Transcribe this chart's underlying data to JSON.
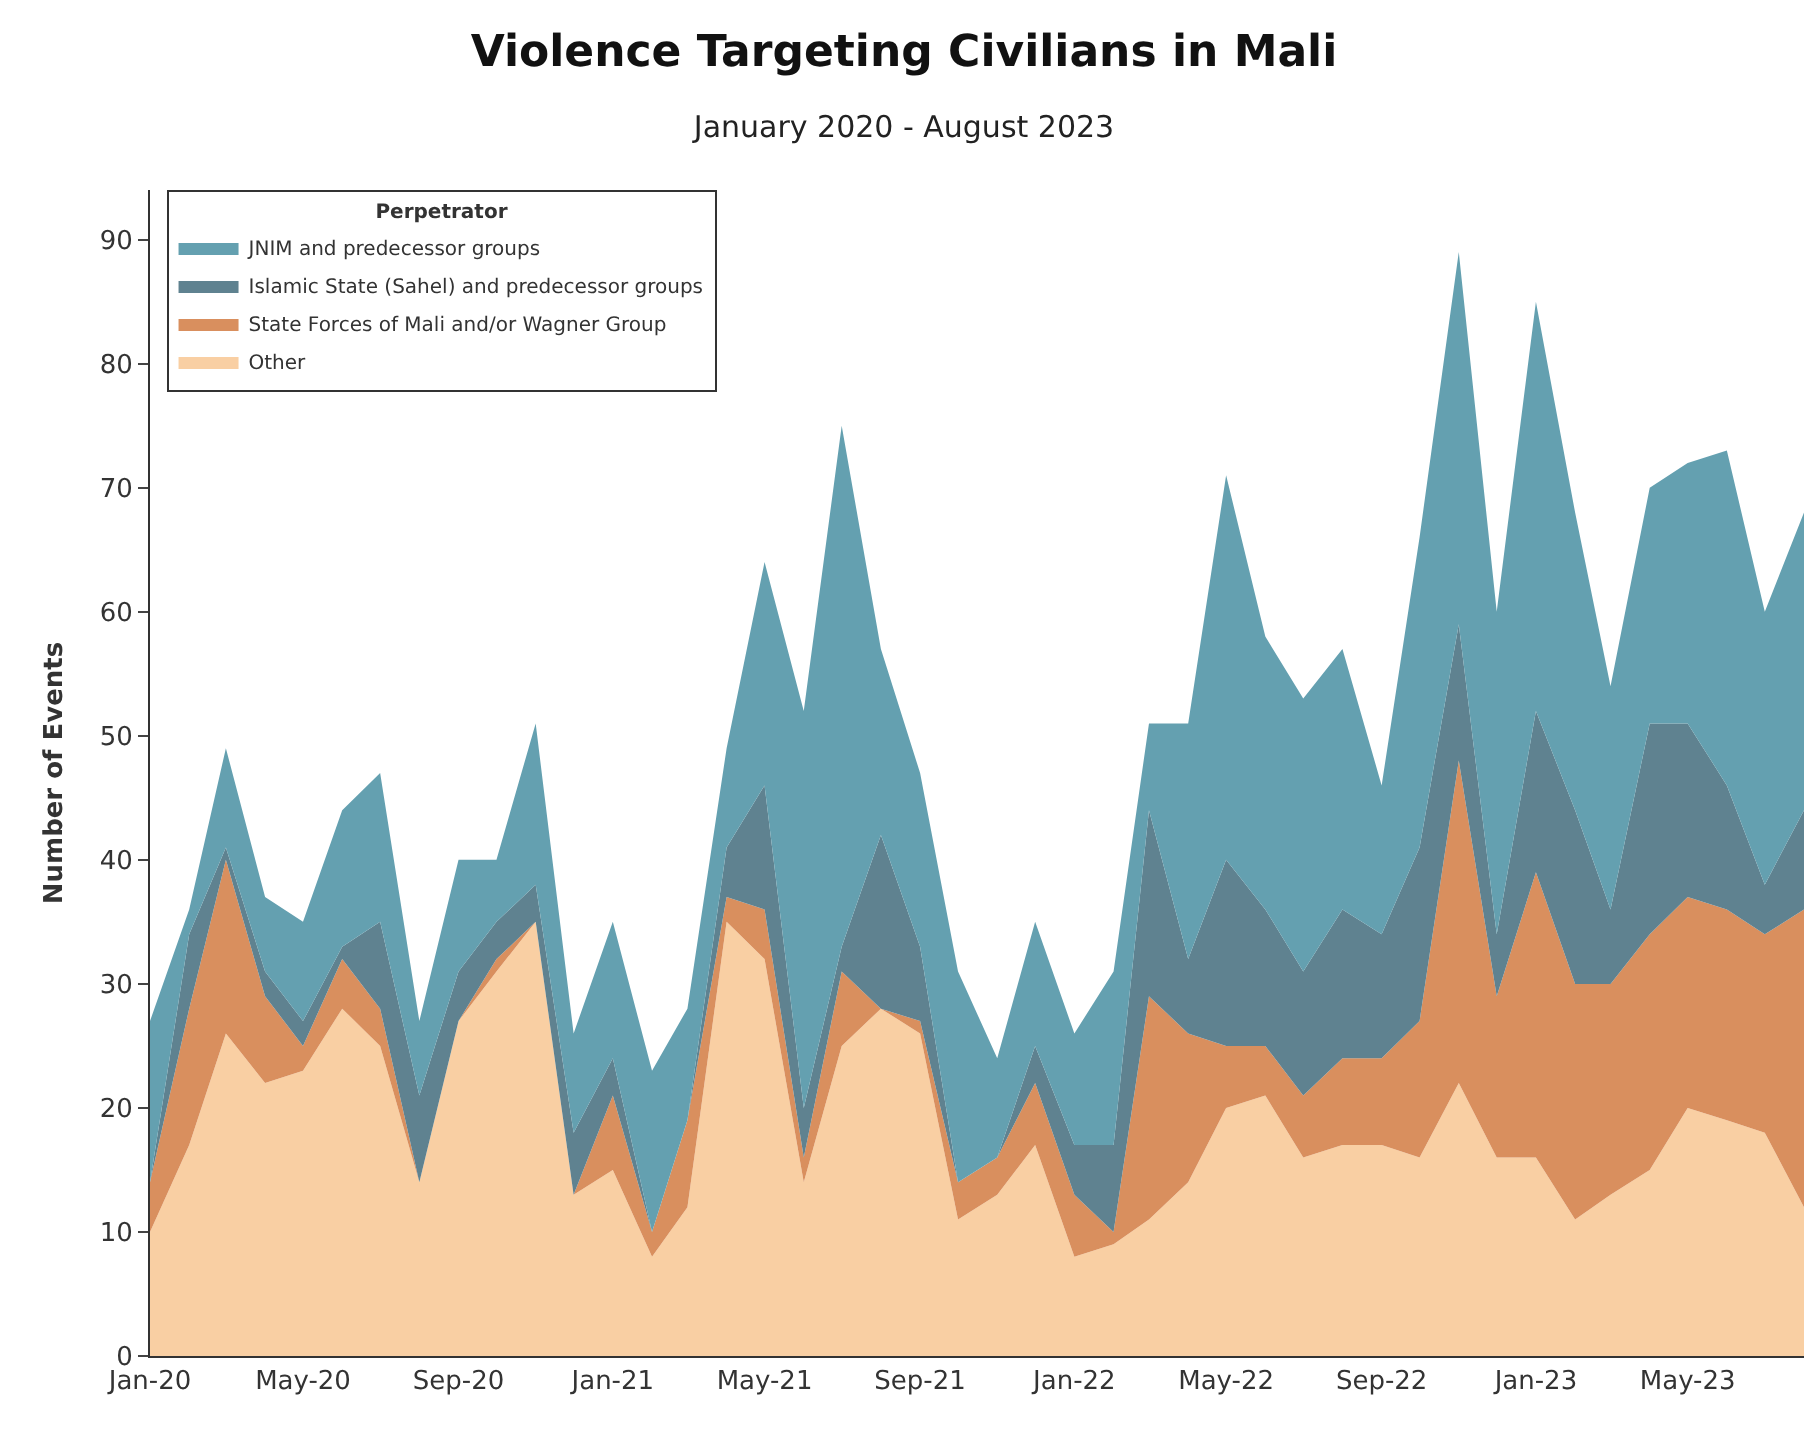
{
  "chart_data": {
    "type": "area",
    "stacked": true,
    "title": "Violence Targeting Civilians in Mali",
    "subtitle": "January 2020 - August 2023",
    "ylabel": "Number of Events",
    "legend_title": "Perpetrator",
    "legend": "top left",
    "x": [
      "2020-01",
      "2020-02",
      "2020-03",
      "2020-04",
      "2020-05",
      "2020-06",
      "2020-07",
      "2020-08",
      "2020-09",
      "2020-10",
      "2020-11",
      "2020-12",
      "2021-01",
      "2021-02",
      "2021-03",
      "2021-04",
      "2021-05",
      "2021-06",
      "2021-07",
      "2021-08",
      "2021-09",
      "2021-10",
      "2021-11",
      "2021-12",
      "2022-01",
      "2022-02",
      "2022-03",
      "2022-04",
      "2022-05",
      "2022-06",
      "2022-07",
      "2022-08",
      "2022-09",
      "2022-10",
      "2022-11",
      "2022-12",
      "2023-01",
      "2023-02",
      "2023-03",
      "2023-04",
      "2023-05",
      "2023-06",
      "2023-07",
      "2023-08"
    ],
    "xlim": [
      "2020-01",
      "2023-08"
    ],
    "xticks": [
      {
        "value": "2020-01",
        "label": "Jan-20"
      },
      {
        "value": "2020-05",
        "label": "May-20"
      },
      {
        "value": "2020-09",
        "label": "Sep-20"
      },
      {
        "value": "2021-01",
        "label": "Jan-21"
      },
      {
        "value": "2021-05",
        "label": "May-21"
      },
      {
        "value": "2021-09",
        "label": "Sep-21"
      },
      {
        "value": "2022-01",
        "label": "Jan-22"
      },
      {
        "value": "2022-05",
        "label": "May-22"
      },
      {
        "value": "2022-09",
        "label": "Sep-22"
      },
      {
        "value": "2023-01",
        "label": "Jan-23"
      },
      {
        "value": "2023-05",
        "label": "May-23"
      }
    ],
    "ylim": [
      0,
      94
    ],
    "yticks": [
      0,
      10,
      20,
      30,
      40,
      50,
      60,
      70,
      80,
      90
    ],
    "series": [
      {
        "name": "Other",
        "color": "#f9cfa3",
        "values": [
          10,
          17,
          26,
          22,
          23,
          28,
          25,
          14,
          27,
          31,
          35,
          13,
          15,
          8,
          12,
          35,
          32,
          14,
          25,
          28,
          26,
          11,
          13,
          17,
          8,
          9,
          11,
          14,
          20,
          21,
          16,
          17,
          17,
          16,
          22,
          16,
          16,
          11,
          13,
          15,
          20,
          19,
          18,
          12
        ]
      },
      {
        "name": "State Forces of Mali and/or Wagner Group",
        "color": "#d98f5e",
        "values": [
          4,
          11,
          14,
          7,
          2,
          4,
          3,
          0,
          0,
          1,
          0,
          0,
          6,
          2,
          7,
          2,
          4,
          2,
          6,
          0,
          1,
          3,
          3,
          5,
          5,
          1,
          18,
          12,
          5,
          4,
          5,
          7,
          7,
          11,
          26,
          13,
          23,
          19,
          17,
          19,
          17,
          17,
          16,
          24
        ]
      },
      {
        "name": "Islamic State (Sahel) and predecessor groups",
        "color": "#5f8290",
        "values": [
          0,
          6,
          1,
          2,
          2,
          1,
          7,
          7,
          4,
          3,
          3,
          5,
          3,
          0,
          0,
          4,
          10,
          4,
          2,
          14,
          6,
          0,
          0,
          3,
          4,
          7,
          15,
          6,
          15,
          11,
          10,
          12,
          10,
          14,
          11,
          5,
          13,
          14,
          6,
          17,
          14,
          10,
          4,
          8
        ]
      },
      {
        "name": "JNIM and predecessor groups",
        "color": "#64a0b0",
        "values": [
          13,
          2,
          8,
          6,
          8,
          11,
          12,
          6,
          9,
          5,
          13,
          8,
          11,
          13,
          9,
          8,
          18,
          32,
          42,
          15,
          14,
          17,
          8,
          10,
          9,
          14,
          7,
          19,
          31,
          22,
          22,
          21,
          12,
          25,
          30,
          26,
          33,
          24,
          18,
          19,
          21,
          27,
          22,
          24
        ]
      }
    ]
  }
}
